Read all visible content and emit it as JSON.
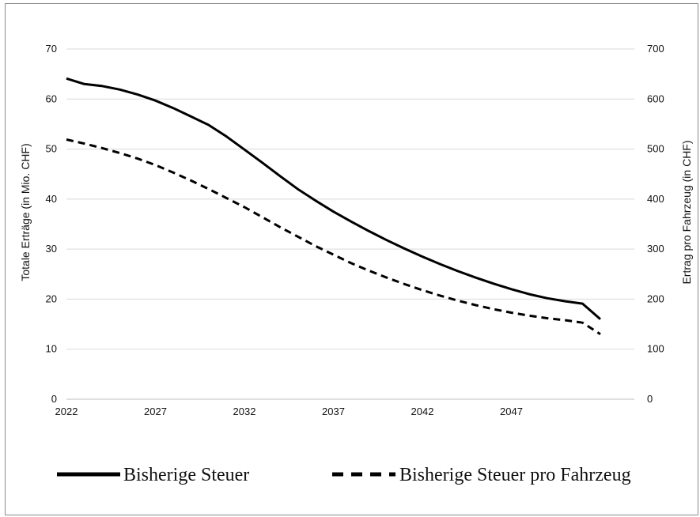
{
  "chart_data": {
    "type": "line",
    "title": "",
    "xlabel": "",
    "ylabel_left": "Totale Erträge (in Mio. CHF)",
    "ylabel_right": "Ertrag pro Fahrzeug (in CHF)",
    "ylim_left": [
      0,
      70
    ],
    "ylim_right": [
      0,
      700
    ],
    "yticks_left": [
      "0",
      "10",
      "20",
      "30",
      "40",
      "50",
      "60",
      "70"
    ],
    "yticks_right": [
      "0",
      "100",
      "200",
      "300",
      "400",
      "500",
      "600",
      "700"
    ],
    "xlim": [
      2022,
      2052
    ],
    "xticks": [
      "2022",
      "2027",
      "2032",
      "2037",
      "2042",
      "2047"
    ],
    "grid": true,
    "legend_position": "bottom",
    "series": [
      {
        "name": "Bisherige Steuer",
        "axis": "left",
        "style": "solid",
        "color": "#000000",
        "x": [
          2022,
          2023,
          2024,
          2025,
          2026,
          2027,
          2028,
          2029,
          2030,
          2031,
          2032,
          2033,
          2034,
          2035,
          2036,
          2037,
          2038,
          2039,
          2040,
          2041,
          2042,
          2043,
          2044,
          2045,
          2046,
          2047,
          2048,
          2049,
          2050,
          2051,
          2052
        ],
        "values": [
          64.1,
          63.0,
          62.6,
          61.9,
          60.9,
          59.7,
          58.2,
          56.5,
          54.8,
          52.5,
          49.9,
          47.3,
          44.6,
          42.0,
          39.7,
          37.5,
          35.5,
          33.6,
          31.8,
          30.1,
          28.5,
          27.0,
          25.6,
          24.3,
          23.1,
          22.0,
          21.0,
          20.2,
          19.6,
          19.1,
          16.0
        ]
      },
      {
        "name": "Bisherige Steuer pro Fahrzeug",
        "axis": "right",
        "style": "dashed",
        "color": "#000000",
        "x": [
          2022,
          2023,
          2024,
          2025,
          2026,
          2027,
          2028,
          2029,
          2030,
          2031,
          2032,
          2033,
          2034,
          2035,
          2036,
          2037,
          2038,
          2039,
          2040,
          2041,
          2042,
          2043,
          2044,
          2045,
          2046,
          2047,
          2048,
          2049,
          2050,
          2051,
          2052
        ],
        "values": [
          519,
          511,
          502,
          492,
          481,
          468,
          453,
          437,
          420,
          402,
          384,
          364,
          344,
          325,
          306,
          289,
          272,
          257,
          243,
          230,
          218,
          207,
          197,
          188,
          180,
          173,
          167,
          162,
          158,
          153,
          130
        ]
      }
    ]
  }
}
